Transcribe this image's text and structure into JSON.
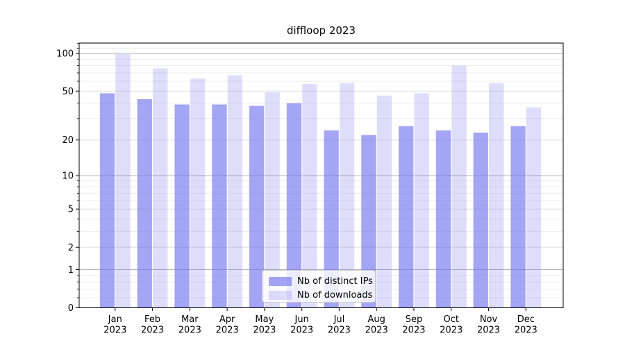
{
  "chart_data": {
    "type": "bar",
    "title": "diffloop 2023",
    "categories": [
      "Jan 2023",
      "Feb 2023",
      "Mar 2023",
      "Apr 2023",
      "May 2023",
      "Jun 2023",
      "Jul 2023",
      "Aug 2023",
      "Sep 2023",
      "Oct 2023",
      "Nov 2023",
      "Dec 2023"
    ],
    "series": [
      {
        "name": "Nb of distinct IPs",
        "values": [
          48,
          43,
          39,
          39,
          38,
          40,
          24,
          22,
          26,
          24,
          23,
          26
        ],
        "color": "rgba(116,116,240,0.65)"
      },
      {
        "name": "Nb of downloads",
        "values": [
          99,
          76,
          63,
          67,
          49,
          57,
          58,
          46,
          48,
          80,
          58,
          37
        ],
        "color": "rgba(116,116,240,0.24)"
      }
    ],
    "yscale": "symlog",
    "yticks": [
      0,
      1,
      2,
      5,
      10,
      20,
      50,
      100
    ],
    "ylim": [
      0,
      121
    ],
    "xlabel": "",
    "ylabel": "",
    "grid": true,
    "legend_position": "lower center"
  },
  "colors": {
    "bar_dark_on_white": "#a8a8f4",
    "bar_light_on_white": "#d8d8f8",
    "grid_major_decade": "#b2b2b2",
    "grid_labeled": "#dedede",
    "grid_minor": "#ececec",
    "axis_frame": "#000000",
    "legend_border": "#cccccc"
  }
}
